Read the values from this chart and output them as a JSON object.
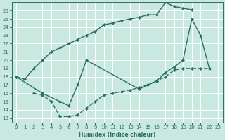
{
  "xlabel": "Humidex (Indice chaleur)",
  "bg_color": "#c8e8e0",
  "grid_color": "#ffffff",
  "line_color": "#2a6e64",
  "xlim": [
    -0.5,
    23.5
  ],
  "ylim": [
    12.5,
    27.0
  ],
  "xticks": [
    0,
    1,
    2,
    3,
    4,
    5,
    6,
    7,
    8,
    9,
    10,
    11,
    12,
    13,
    14,
    15,
    16,
    17,
    18,
    19,
    20,
    21,
    22,
    23
  ],
  "yticks": [
    13,
    14,
    15,
    16,
    17,
    18,
    19,
    20,
    21,
    22,
    23,
    24,
    25,
    26
  ],
  "line1_x": [
    0,
    1,
    2,
    3,
    4,
    5,
    6,
    7,
    8,
    9,
    10,
    11,
    12,
    13,
    14,
    15,
    16,
    17,
    18,
    19,
    20
  ],
  "line1_y": [
    18,
    17.7,
    19.0,
    20.0,
    21.0,
    21.5,
    22.0,
    22.5,
    23.0,
    23.5,
    24.3,
    24.5,
    24.8,
    25.0,
    25.2,
    25.5,
    25.5,
    27.0,
    26.5,
    26.3,
    26.1
  ],
  "line2_x": [
    0,
    3,
    5,
    6,
    7,
    8,
    14,
    15,
    16,
    17,
    18,
    19,
    20,
    21,
    22
  ],
  "line2_y": [
    18,
    16,
    15.0,
    14.5,
    17.0,
    20.0,
    16.5,
    17.0,
    17.5,
    18.5,
    19.2,
    20.0,
    25.0,
    23.0,
    19.0
  ],
  "line3_x": [
    2,
    3,
    4,
    5,
    6,
    7,
    8,
    9,
    10,
    11,
    12,
    13,
    14,
    15,
    16,
    17,
    18,
    19,
    20,
    21,
    22
  ],
  "line3_y": [
    16.0,
    15.8,
    15.0,
    13.2,
    13.2,
    13.4,
    14.2,
    15.0,
    15.8,
    16.0,
    16.2,
    16.4,
    16.7,
    17.0,
    17.5,
    18.0,
    18.8,
    19.0,
    19.0,
    19.0,
    19.0
  ],
  "marker_size": 2.5,
  "line_width": 1.0,
  "tick_fontsize": 5,
  "xlabel_fontsize": 5.5
}
